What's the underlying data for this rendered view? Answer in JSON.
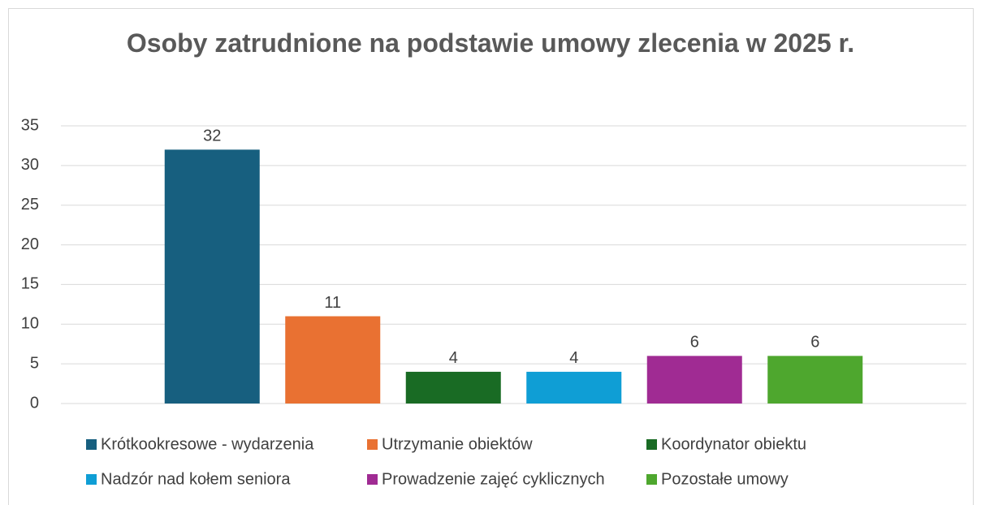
{
  "chart_data": {
    "type": "bar",
    "title": "Osoby zatrudnione na podstawie umowy zlecenia w 2025 r.",
    "series": [
      {
        "name": "Krótkookresowe - wydarzenia",
        "color": "#175f7f",
        "values": [
          32
        ]
      },
      {
        "name": "Utrzymanie obiektów",
        "color": "#e97132",
        "values": [
          11
        ]
      },
      {
        "name": "Koordynator obiektu",
        "color": "#196b24",
        "values": [
          4
        ]
      },
      {
        "name": "Nadzór nad kołem seniora",
        "color": "#0f9ed5",
        "values": [
          4
        ]
      },
      {
        "name": "Prowadzenie zajęć cyklicznych",
        "color": "#a02b93",
        "values": [
          6
        ]
      },
      {
        "name": "Pozostałe umowy",
        "color": "#4ea72e",
        "values": [
          6
        ]
      }
    ],
    "ylim": [
      0,
      35
    ],
    "yticks": [
      0,
      5,
      10,
      15,
      20,
      25,
      30,
      35
    ],
    "grid": true,
    "data_labels": true,
    "legend": "bottom"
  }
}
